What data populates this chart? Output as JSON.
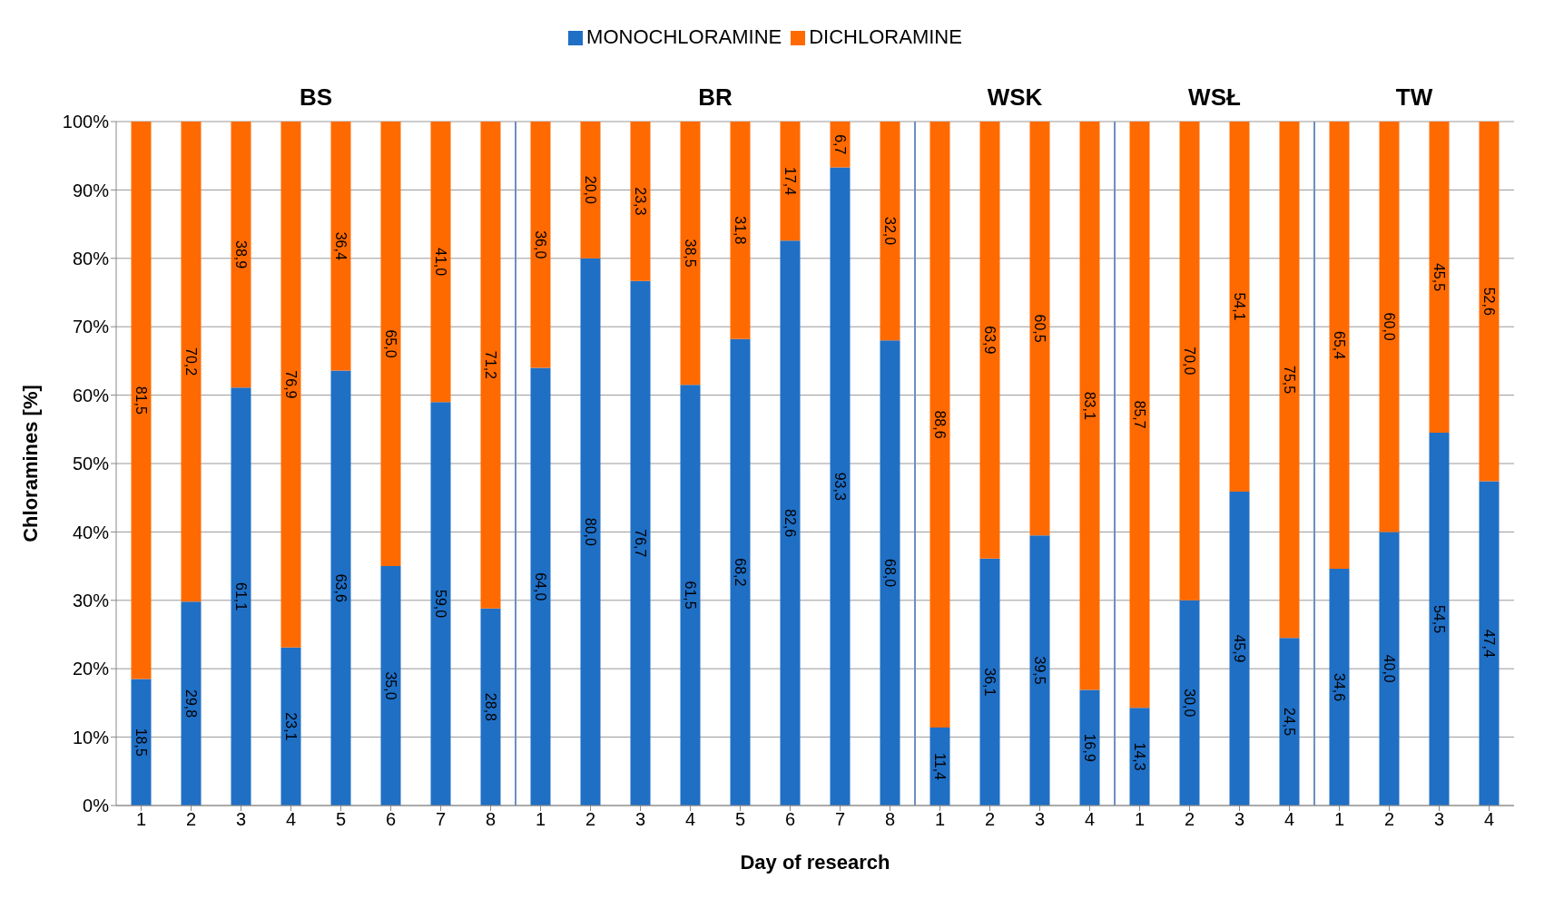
{
  "chart_data": {
    "type": "bar",
    "stacked": true,
    "xlabel": "Day of research",
    "ylabel": "Chloramines [%]",
    "categories": [
      "1",
      "2",
      "3",
      "4",
      "5",
      "6",
      "7",
      "8",
      "1",
      "2",
      "3",
      "4",
      "5",
      "6",
      "7",
      "8",
      "1",
      "2",
      "3",
      "4",
      "1",
      "2",
      "3",
      "4",
      "1",
      "2",
      "3",
      "4"
    ],
    "series": [
      {
        "name": "MONOCHLORAMINE",
        "color": "#1f6fc5",
        "values": [
          18.5,
          29.8,
          61.1,
          23.1,
          63.6,
          35.0,
          59.0,
          28.8,
          64.0,
          80.0,
          76.7,
          61.5,
          68.2,
          82.6,
          93.3,
          68.0,
          11.4,
          36.1,
          39.5,
          16.9,
          14.3,
          30.0,
          45.9,
          24.5,
          34.6,
          40.0,
          54.5,
          47.4
        ],
        "value_labels": [
          "18,5",
          "29,8",
          "61,1",
          "23,1",
          "63,6",
          "35,0",
          "59,0",
          "28,8",
          "64,0",
          "80,0",
          "76,7",
          "61,5",
          "68,2",
          "82,6",
          "93,3",
          "68,0",
          "11,4",
          "36,1",
          "39,5",
          "16,9",
          "14,3",
          "30,0",
          "45,9",
          "24,5",
          "34,6",
          "40,0",
          "54,5",
          "47,4"
        ]
      },
      {
        "name": "DICHLORAMINE",
        "color": "#ff6a00",
        "values": [
          81.5,
          70.2,
          38.9,
          76.9,
          36.4,
          65.0,
          41.0,
          71.2,
          36.0,
          20.0,
          23.3,
          38.5,
          31.8,
          17.4,
          6.7,
          32.0,
          88.6,
          63.9,
          60.5,
          83.1,
          85.7,
          70.0,
          54.1,
          75.5,
          65.4,
          60.0,
          45.5,
          52.6
        ],
        "value_labels": [
          "81,5",
          "70,2",
          "38,9",
          "76,9",
          "36,4",
          "65,0",
          "41,0",
          "71,2",
          "36,0",
          "20,0",
          "23,3",
          "38,5",
          "31,8",
          "17,4",
          "6,7",
          "32,0",
          "88,6",
          "63,9",
          "60,5",
          "83,1",
          "85,7",
          "70,0",
          "54,1",
          "75,5",
          "65,4",
          "60,0",
          "45,5",
          "52,6"
        ]
      }
    ],
    "ylim": [
      0,
      100
    ],
    "yticks": [
      {
        "value": 0,
        "label": "0%"
      },
      {
        "value": 10,
        "label": "10%"
      },
      {
        "value": 20,
        "label": "20%"
      },
      {
        "value": 30,
        "label": "30%"
      },
      {
        "value": 40,
        "label": "40%"
      },
      {
        "value": 50,
        "label": "50%"
      },
      {
        "value": 60,
        "label": "60%"
      },
      {
        "value": 70,
        "label": "70%"
      },
      {
        "value": 80,
        "label": "80%"
      },
      {
        "value": 90,
        "label": "90%"
      },
      {
        "value": 100,
        "label": "100%"
      }
    ],
    "grid": "y",
    "legend": "top",
    "annotations": [
      "BS",
      "BR",
      "WSK",
      "WSŁ",
      "TW"
    ]
  }
}
